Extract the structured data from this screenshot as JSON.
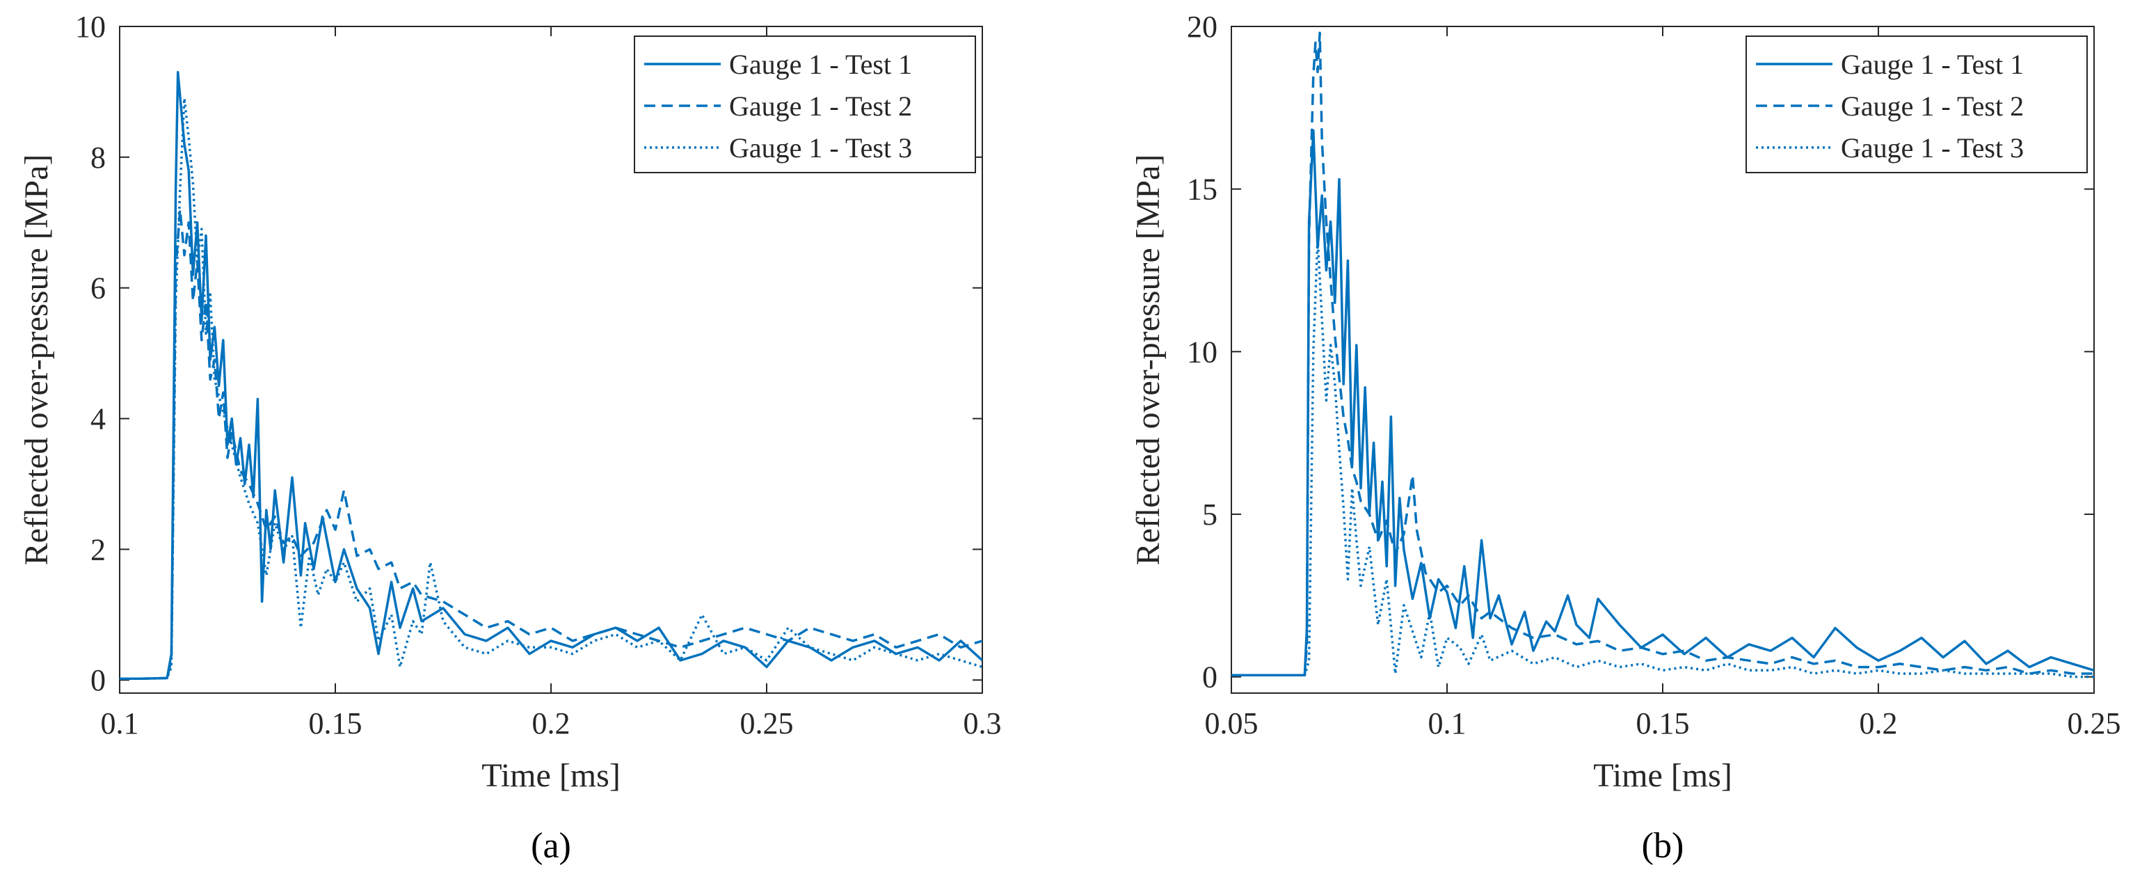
{
  "chart_data": [
    {
      "type": "line",
      "panel_label": "(a)",
      "title": "",
      "xlabel": "Time [ms]",
      "ylabel": "Reflected over-pressure [MPa]",
      "xlim": [
        0.1,
        0.3
      ],
      "ylim": [
        -0.2,
        10
      ],
      "xticks": [
        0.1,
        0.15,
        0.2,
        0.25,
        0.3
      ],
      "xtick_labels": [
        "0.1",
        "0.15",
        "0.2",
        "0.25",
        "0.3"
      ],
      "yticks": [
        0,
        2,
        4,
        6,
        8,
        10
      ],
      "ytick_labels": [
        "0",
        "2",
        "4",
        "6",
        "8",
        "10"
      ],
      "grid": false,
      "legend_position": "top-right",
      "series": [
        {
          "name": "Gauge 1 - Test 1",
          "line_style": "solid",
          "x": [
            0.1,
            0.105,
            0.111,
            0.112,
            0.113,
            0.1135,
            0.115,
            0.116,
            0.117,
            0.118,
            0.119,
            0.12,
            0.121,
            0.122,
            0.123,
            0.124,
            0.125,
            0.126,
            0.127,
            0.128,
            0.129,
            0.13,
            0.131,
            0.132,
            0.133,
            0.134,
            0.135,
            0.136,
            0.138,
            0.14,
            0.142,
            0.143,
            0.145,
            0.147,
            0.15,
            0.152,
            0.155,
            0.158,
            0.16,
            0.163,
            0.165,
            0.168,
            0.17,
            0.175,
            0.18,
            0.185,
            0.19,
            0.195,
            0.2,
            0.205,
            0.21,
            0.215,
            0.22,
            0.225,
            0.23,
            0.235,
            0.24,
            0.245,
            0.25,
            0.255,
            0.26,
            0.265,
            0.27,
            0.275,
            0.28,
            0.285,
            0.29,
            0.295,
            0.3
          ],
          "y": [
            0.02,
            0.02,
            0.03,
            0.4,
            7.5,
            9.3,
            8.2,
            7.8,
            6.2,
            7.0,
            5.5,
            6.8,
            4.9,
            5.4,
            4.5,
            5.2,
            3.6,
            4.0,
            3.3,
            3.7,
            3.0,
            3.6,
            2.8,
            4.3,
            1.2,
            2.6,
            2.0,
            2.9,
            1.8,
            3.1,
            1.6,
            2.4,
            1.7,
            2.5,
            1.5,
            2.0,
            1.4,
            1.1,
            0.4,
            1.5,
            0.8,
            1.4,
            0.9,
            1.1,
            0.7,
            0.6,
            0.8,
            0.4,
            0.6,
            0.5,
            0.7,
            0.8,
            0.6,
            0.8,
            0.3,
            0.4,
            0.6,
            0.5,
            0.2,
            0.6,
            0.5,
            0.3,
            0.5,
            0.6,
            0.4,
            0.5,
            0.3,
            0.6,
            0.3
          ]
        },
        {
          "name": "Gauge 1 - Test 2",
          "line_style": "dashed",
          "x": [
            0.1,
            0.105,
            0.111,
            0.112,
            0.113,
            0.114,
            0.115,
            0.116,
            0.117,
            0.118,
            0.119,
            0.12,
            0.121,
            0.122,
            0.123,
            0.124,
            0.125,
            0.126,
            0.128,
            0.13,
            0.132,
            0.134,
            0.136,
            0.138,
            0.14,
            0.142,
            0.145,
            0.148,
            0.15,
            0.152,
            0.155,
            0.158,
            0.16,
            0.163,
            0.165,
            0.168,
            0.17,
            0.175,
            0.18,
            0.185,
            0.19,
            0.195,
            0.2,
            0.205,
            0.21,
            0.215,
            0.22,
            0.225,
            0.23,
            0.235,
            0.24,
            0.245,
            0.25,
            0.255,
            0.26,
            0.265,
            0.27,
            0.275,
            0.28,
            0.285,
            0.29,
            0.295,
            0.3
          ],
          "y": [
            0.02,
            0.02,
            0.03,
            0.3,
            6.3,
            7.2,
            6.5,
            7.0,
            5.8,
            6.4,
            5.2,
            5.8,
            4.6,
            4.9,
            4.0,
            4.4,
            3.4,
            3.8,
            3.2,
            3.0,
            2.7,
            2.3,
            2.5,
            2.1,
            2.2,
            1.9,
            2.1,
            2.6,
            2.3,
            2.9,
            1.9,
            2.0,
            1.7,
            1.8,
            1.4,
            1.5,
            1.3,
            1.2,
            1.0,
            0.8,
            0.9,
            0.7,
            0.8,
            0.6,
            0.7,
            0.8,
            0.7,
            0.6,
            0.5,
            0.6,
            0.7,
            0.8,
            0.7,
            0.6,
            0.8,
            0.7,
            0.6,
            0.7,
            0.5,
            0.6,
            0.7,
            0.5,
            0.6
          ]
        },
        {
          "name": "Gauge 1 - Test 3",
          "line_style": "dotted",
          "x": [
            0.1,
            0.105,
            0.111,
            0.112,
            0.113,
            0.114,
            0.115,
            0.116,
            0.117,
            0.118,
            0.119,
            0.12,
            0.121,
            0.122,
            0.124,
            0.126,
            0.128,
            0.13,
            0.132,
            0.134,
            0.136,
            0.138,
            0.14,
            0.142,
            0.144,
            0.146,
            0.148,
            0.15,
            0.152,
            0.155,
            0.158,
            0.16,
            0.163,
            0.165,
            0.168,
            0.17,
            0.172,
            0.175,
            0.18,
            0.185,
            0.19,
            0.195,
            0.2,
            0.205,
            0.21,
            0.215,
            0.22,
            0.225,
            0.23,
            0.235,
            0.24,
            0.245,
            0.25,
            0.255,
            0.26,
            0.265,
            0.27,
            0.275,
            0.28,
            0.285,
            0.29,
            0.295,
            0.3
          ],
          "y": [
            0.02,
            0.02,
            0.03,
            0.2,
            5.8,
            7.5,
            8.9,
            8.3,
            7.6,
            6.4,
            6.9,
            5.3,
            5.9,
            4.6,
            4.1,
            3.6,
            3.1,
            2.7,
            2.4,
            1.6,
            2.4,
            2.0,
            2.2,
            0.8,
            1.9,
            1.3,
            1.7,
            1.5,
            1.8,
            1.2,
            1.4,
            0.6,
            1.0,
            0.2,
            0.9,
            0.7,
            1.8,
            0.9,
            0.5,
            0.4,
            0.6,
            0.5,
            0.5,
            0.4,
            0.6,
            0.7,
            0.5,
            0.6,
            0.3,
            1.0,
            0.4,
            0.5,
            0.3,
            0.8,
            0.5,
            0.4,
            0.3,
            0.5,
            0.4,
            0.3,
            0.4,
            0.3,
            0.2
          ]
        }
      ]
    },
    {
      "type": "line",
      "panel_label": "(b)",
      "title": "",
      "xlabel": "Time [ms]",
      "ylabel": "Reflected over-pressure [MPa]",
      "xlim": [
        0.05,
        0.25
      ],
      "ylim": [
        -0.5,
        20
      ],
      "xticks": [
        0.05,
        0.1,
        0.15,
        0.2,
        0.25
      ],
      "xtick_labels": [
        "0.05",
        "0.1",
        "0.15",
        "0.2",
        "0.25"
      ],
      "yticks": [
        0,
        5,
        10,
        15,
        20
      ],
      "ytick_labels": [
        "0",
        "5",
        "10",
        "15",
        "20"
      ],
      "grid": false,
      "legend_position": "top-right",
      "series": [
        {
          "name": "Gauge 1 - Test 1",
          "line_style": "solid",
          "x": [
            0.05,
            0.06,
            0.067,
            0.0675,
            0.068,
            0.069,
            0.07,
            0.071,
            0.072,
            0.073,
            0.074,
            0.075,
            0.076,
            0.077,
            0.078,
            0.079,
            0.08,
            0.081,
            0.082,
            0.083,
            0.084,
            0.085,
            0.086,
            0.087,
            0.088,
            0.089,
            0.09,
            0.092,
            0.094,
            0.096,
            0.098,
            0.1,
            0.102,
            0.104,
            0.106,
            0.108,
            0.11,
            0.112,
            0.115,
            0.118,
            0.12,
            0.123,
            0.125,
            0.128,
            0.13,
            0.133,
            0.135,
            0.14,
            0.145,
            0.15,
            0.155,
            0.16,
            0.165,
            0.17,
            0.175,
            0.18,
            0.185,
            0.19,
            0.195,
            0.2,
            0.205,
            0.21,
            0.215,
            0.22,
            0.225,
            0.23,
            0.235,
            0.24,
            0.245,
            0.25
          ],
          "y": [
            0.05,
            0.05,
            0.05,
            1.5,
            14.0,
            16.8,
            13.2,
            14.8,
            12.5,
            14.0,
            11.5,
            15.3,
            9.0,
            12.8,
            6.5,
            10.2,
            5.8,
            8.9,
            5.0,
            7.2,
            4.2,
            6.0,
            3.4,
            8.0,
            2.8,
            5.5,
            3.9,
            2.4,
            3.5,
            1.8,
            3.0,
            2.6,
            1.5,
            3.4,
            1.2,
            4.2,
            1.8,
            2.5,
            1.0,
            2.0,
            0.8,
            1.7,
            1.4,
            2.5,
            1.6,
            1.2,
            2.4,
            1.6,
            0.9,
            1.3,
            0.7,
            1.2,
            0.6,
            1.0,
            0.8,
            1.2,
            0.6,
            1.5,
            0.9,
            0.5,
            0.8,
            1.2,
            0.6,
            1.1,
            0.4,
            0.8,
            0.3,
            0.6,
            0.4,
            0.2
          ]
        },
        {
          "name": "Gauge 1 - Test 2",
          "line_style": "dashed",
          "x": [
            0.05,
            0.06,
            0.067,
            0.0675,
            0.068,
            0.069,
            0.0695,
            0.07,
            0.0705,
            0.071,
            0.072,
            0.073,
            0.074,
            0.075,
            0.076,
            0.077,
            0.078,
            0.079,
            0.08,
            0.082,
            0.084,
            0.086,
            0.088,
            0.09,
            0.092,
            0.093,
            0.095,
            0.098,
            0.1,
            0.103,
            0.105,
            0.108,
            0.11,
            0.115,
            0.12,
            0.125,
            0.13,
            0.135,
            0.14,
            0.145,
            0.15,
            0.155,
            0.16,
            0.165,
            0.17,
            0.175,
            0.18,
            0.185,
            0.19,
            0.195,
            0.2,
            0.205,
            0.21,
            0.215,
            0.22,
            0.225,
            0.23,
            0.235,
            0.24,
            0.245,
            0.25
          ],
          "y": [
            0.05,
            0.05,
            0.05,
            1.0,
            13.5,
            18.5,
            19.5,
            18.6,
            19.8,
            16.5,
            14.0,
            12.2,
            10.5,
            9.2,
            8.0,
            7.3,
            6.4,
            6.0,
            5.4,
            5.0,
            4.2,
            4.8,
            3.8,
            4.4,
            6.2,
            4.5,
            3.2,
            2.6,
            2.8,
            2.2,
            2.5,
            1.8,
            2.0,
            1.5,
            1.2,
            1.3,
            1.0,
            1.1,
            0.8,
            0.9,
            0.7,
            0.8,
            0.5,
            0.6,
            0.5,
            0.4,
            0.6,
            0.4,
            0.5,
            0.3,
            0.3,
            0.4,
            0.3,
            0.2,
            0.3,
            0.2,
            0.3,
            0.1,
            0.2,
            0.1,
            0.1
          ]
        },
        {
          "name": "Gauge 1 - Test 3",
          "line_style": "dotted",
          "x": [
            0.05,
            0.06,
            0.067,
            0.068,
            0.069,
            0.07,
            0.071,
            0.072,
            0.073,
            0.074,
            0.075,
            0.076,
            0.077,
            0.078,
            0.079,
            0.08,
            0.082,
            0.084,
            0.086,
            0.088,
            0.09,
            0.092,
            0.094,
            0.096,
            0.098,
            0.1,
            0.103,
            0.105,
            0.108,
            0.11,
            0.115,
            0.12,
            0.125,
            0.13,
            0.135,
            0.14,
            0.145,
            0.15,
            0.155,
            0.16,
            0.165,
            0.17,
            0.175,
            0.18,
            0.185,
            0.19,
            0.195,
            0.2,
            0.205,
            0.21,
            0.215,
            0.22,
            0.225,
            0.23,
            0.235,
            0.24,
            0.245,
            0.25
          ],
          "y": [
            0.05,
            0.05,
            0.05,
            0.5,
            10.0,
            13.5,
            11.0,
            8.5,
            10.2,
            9.0,
            7.0,
            5.2,
            3.0,
            5.8,
            4.2,
            2.8,
            4.0,
            1.6,
            3.0,
            0.1,
            2.2,
            1.4,
            0.6,
            2.0,
            0.3,
            1.2,
            0.9,
            0.4,
            1.3,
            0.5,
            0.8,
            0.4,
            0.6,
            0.3,
            0.5,
            0.3,
            0.4,
            0.2,
            0.3,
            0.2,
            0.4,
            0.2,
            0.2,
            0.3,
            0.1,
            0.2,
            0.1,
            0.2,
            0.1,
            0.1,
            0.2,
            0.1,
            0.1,
            0.1,
            0.1,
            0.1,
            0.0,
            0.0
          ]
        }
      ]
    }
  ],
  "colors": {
    "series_line": "#0072BD",
    "axis": "#262626",
    "background": "#ffffff"
  }
}
